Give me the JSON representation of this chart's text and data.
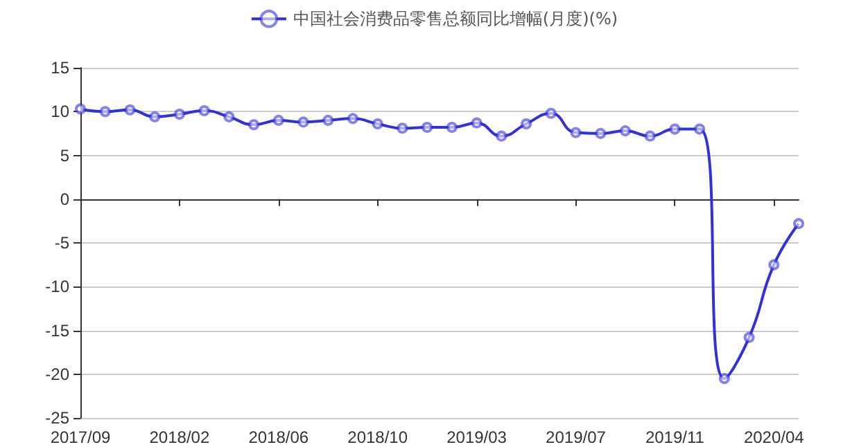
{
  "chart_data": {
    "type": "line",
    "categories": [
      "2017/09",
      null,
      null,
      null,
      "2018/02",
      null,
      null,
      null,
      "2018/06",
      null,
      null,
      null,
      "2018/10",
      null,
      null,
      null,
      "2019/03",
      null,
      null,
      null,
      "2019/07",
      null,
      null,
      null,
      "2019/11",
      null,
      null,
      null,
      "2020/04",
      null
    ],
    "series": [
      {
        "name": "中国社会消费品零售总额同比增幅(月度)(%)",
        "color": "#3030dd",
        "values": [
          10.3,
          10.0,
          10.2,
          9.4,
          9.7,
          10.1,
          9.4,
          8.5,
          9.0,
          8.8,
          9.0,
          9.2,
          8.6,
          8.1,
          8.2,
          8.2,
          8.7,
          7.2,
          8.6,
          9.8,
          7.6,
          7.5,
          7.8,
          7.2,
          8.0,
          8.0,
          -20.5,
          -15.8,
          -7.5,
          -2.8
        ]
      }
    ],
    "ylim": [
      -25,
      15
    ],
    "yticks": [
      -25,
      -20,
      -15,
      -10,
      -5,
      0,
      5,
      10,
      15
    ],
    "grid": "y",
    "legend": "top",
    "marker": "circle",
    "line_style": "solid"
  }
}
